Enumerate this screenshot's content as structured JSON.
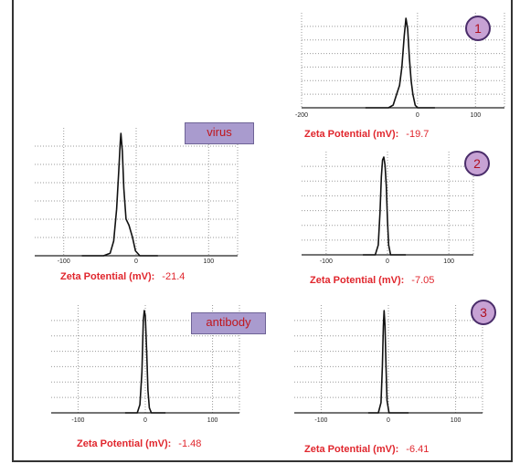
{
  "chart_data": [
    {
      "id": "virus",
      "type": "line",
      "title": "",
      "tag": "virus",
      "badge": "",
      "xlabel": "",
      "ylabel": "",
      "xlim": [
        -140,
        140
      ],
      "tick_labels": [
        "-100",
        "0",
        "100"
      ],
      "tick_values": [
        -100,
        0,
        100
      ],
      "peak_mv": -21.4,
      "zeta_label": "Zeta Potential (mV):",
      "zeta_value": "-21.4",
      "x": [
        -75,
        -45,
        -36,
        -31,
        -27,
        -24,
        -22,
        -21,
        -19,
        -17,
        -14,
        -10,
        -5,
        -1,
        5,
        30
      ],
      "y": [
        0,
        0,
        0.02,
        0.12,
        0.38,
        0.7,
        0.93,
        1.0,
        0.85,
        0.55,
        0.3,
        0.25,
        0.15,
        0.04,
        0,
        0
      ]
    },
    {
      "id": "antibody",
      "type": "line",
      "title": "",
      "tag": "antibody",
      "badge": "",
      "xlabel": "",
      "ylabel": "",
      "xlim": [
        -140,
        140
      ],
      "tick_labels": [
        "-100",
        "0",
        "100"
      ],
      "tick_values": [
        -100,
        0,
        100
      ],
      "peak_mv": -1.48,
      "zeta_label": "Zeta Potential (mV):",
      "zeta_value": "-1.48",
      "x": [
        -30,
        -12,
        -8,
        -5,
        -3,
        -1.5,
        0,
        2,
        4,
        6,
        9,
        30
      ],
      "y": [
        0,
        0,
        0.08,
        0.4,
        0.9,
        1.0,
        0.95,
        0.6,
        0.22,
        0.05,
        0,
        0
      ]
    },
    {
      "id": "sample-1",
      "type": "line",
      "title": "",
      "tag": "",
      "badge": "1",
      "xlabel": "",
      "ylabel": "",
      "xlim": [
        -200,
        150
      ],
      "tick_labels": [
        "-200",
        "0",
        "100"
      ],
      "tick_values": [
        -200,
        0,
        100
      ],
      "peak_mv": -19.7,
      "zeta_label": "Zeta Potential (mV):",
      "zeta_value": "-19.7",
      "x": [
        -90,
        -50,
        -42,
        -36,
        -31,
        -27,
        -23,
        -20,
        -17,
        -14,
        -11,
        -8,
        -4,
        0,
        30
      ],
      "y": [
        0,
        0,
        0.03,
        0.15,
        0.25,
        0.45,
        0.8,
        1.0,
        0.88,
        0.55,
        0.3,
        0.15,
        0.03,
        0,
        0
      ]
    },
    {
      "id": "sample-2",
      "type": "line",
      "title": "",
      "tag": "",
      "badge": "2",
      "xlabel": "",
      "ylabel": "",
      "xlim": [
        -140,
        140
      ],
      "tick_labels": [
        "-100",
        "0",
        "100"
      ],
      "tick_values": [
        -100,
        0,
        100
      ],
      "peak_mv": -7.05,
      "zeta_label": "Zeta Potential (mV):",
      "zeta_value": "-7.05",
      "x": [
        -40,
        -20,
        -15,
        -12,
        -10,
        -8,
        -6,
        -4,
        -2,
        0,
        2,
        5,
        30
      ],
      "y": [
        0,
        0,
        0.1,
        0.45,
        0.8,
        0.97,
        1.0,
        0.92,
        0.7,
        0.35,
        0.1,
        0,
        0
      ]
    },
    {
      "id": "sample-3",
      "type": "line",
      "title": "",
      "tag": "",
      "badge": "3",
      "xlabel": "",
      "ylabel": "",
      "xlim": [
        -140,
        140
      ],
      "tick_labels": [
        "-100",
        "0",
        "100"
      ],
      "tick_values": [
        -100,
        0,
        100
      ],
      "peak_mv": -6.41,
      "zeta_label": "Zeta Potential (mV):",
      "zeta_value": "-6.41",
      "x": [
        -30,
        -15,
        -11,
        -9,
        -7.5,
        -6.4,
        -5,
        -3.5,
        -2,
        1,
        30
      ],
      "y": [
        0,
        0,
        0.1,
        0.45,
        0.85,
        1.0,
        0.85,
        0.45,
        0.12,
        0,
        0
      ]
    }
  ]
}
